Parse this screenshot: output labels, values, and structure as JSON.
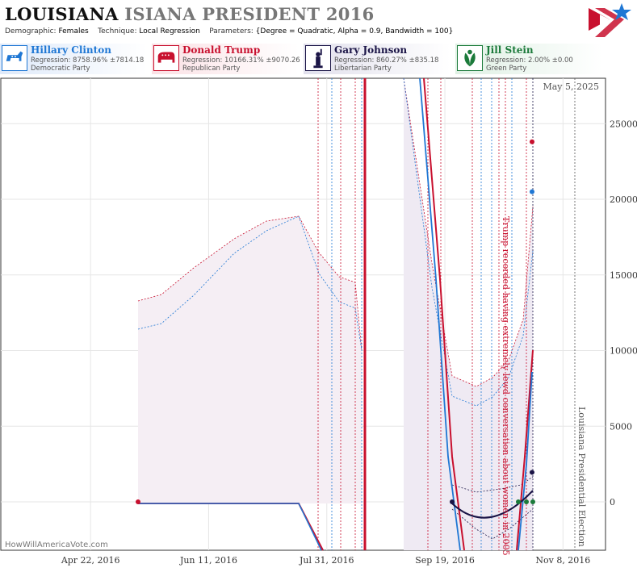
{
  "header": {
    "title_main": "LOUISIANA",
    "title_sub": "ISIANA PRESIDENT 2016",
    "demographic_label": "Demographic:",
    "demographic_value": "Females",
    "technique_label": "Technique:",
    "technique_value": "Local Regression",
    "parameters_label": "Parameters:",
    "parameters_value": "{Degree = Quadratic, Alpha = 0.9, Bandwidth = 100}"
  },
  "candidates": [
    {
      "name": "Hillary Clinton",
      "regression": "Regression: 8758.96% ±7814.18",
      "party": "Democratic Party",
      "color": "#1f77d4",
      "icon": "donkey-icon"
    },
    {
      "name": "Donald Trump",
      "regression": "Regression: 10166.31% ±9070.26",
      "party": "Republican Party",
      "color": "#c8102e",
      "icon": "elephant-icon"
    },
    {
      "name": "Gary Johnson",
      "regression": "Regression: 860.27% ±835.18",
      "party": "Libertarian Party",
      "color": "#1a1446",
      "icon": "liberty-icon"
    },
    {
      "name": "Jill Stein",
      "regression": "Regression: 2.00% ±0.00",
      "party": "Green Party",
      "color": "#1b7a3a",
      "icon": "leaf-icon"
    }
  ],
  "chart_data": {
    "type": "line",
    "date_label": "May 5, 2025",
    "watermark": "HowWillAmericaVote.com",
    "x_ticks": [
      "Apr 22, 2016",
      "Jun 11, 2016",
      "Jul 31, 2016",
      "Sep 19, 2016",
      "Nov 8, 2016"
    ],
    "y_ticks": [
      "0",
      "5000",
      "10000",
      "15000",
      "20000",
      "25000"
    ],
    "ylim": [
      -3200,
      28000
    ],
    "annotations": [
      {
        "text": "Trump recorded having extremely lewd conversation about women in 2005",
        "date": "2016-10-07"
      },
      {
        "text": "Louisiana Presidential Election",
        "date": "2016-11-08"
      }
    ],
    "series": [
      {
        "name": "Hillary Clinton",
        "last_point": 20500
      },
      {
        "name": "Donald Trump",
        "last_point": 23800
      },
      {
        "name": "Gary Johnson",
        "last_point": 1950
      },
      {
        "name": "Jill Stein",
        "last_point": 2
      }
    ]
  },
  "colors": {
    "democrat": "#1f77d4",
    "republican": "#c8102e",
    "libertarian": "#1a1446",
    "green": "#1b7a3a"
  }
}
